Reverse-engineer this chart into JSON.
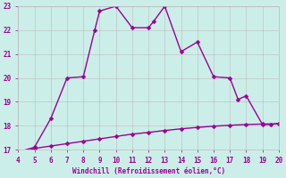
{
  "xlabel": "Windchill (Refroidissement éolien,°C)",
  "xlim": [
    4,
    20
  ],
  "ylim": [
    17,
    23
  ],
  "xticks": [
    4,
    5,
    6,
    7,
    8,
    9,
    10,
    11,
    12,
    13,
    14,
    15,
    16,
    17,
    18,
    19,
    20
  ],
  "yticks": [
    17,
    18,
    19,
    20,
    21,
    22,
    23
  ],
  "line_color": "#990099",
  "bg_color": "#cceee8",
  "grid_color": "#bbbbbb",
  "curve1_x": [
    4,
    5,
    6,
    7,
    8,
    8.7,
    9,
    10,
    11,
    12,
    12.3,
    13,
    14,
    15,
    16,
    17,
    17.5,
    18,
    19,
    19.5,
    20
  ],
  "curve1_y": [
    16.9,
    17.1,
    18.3,
    20.0,
    20.05,
    22.0,
    22.8,
    23.0,
    22.1,
    22.1,
    22.35,
    23.0,
    21.1,
    21.5,
    20.05,
    20.0,
    19.1,
    19.25,
    18.05,
    18.05,
    18.1
  ],
  "curve2_x": [
    4,
    5,
    6,
    7,
    8,
    9,
    10,
    11,
    12,
    13,
    14,
    15,
    16,
    17,
    18,
    19,
    20
  ],
  "curve2_y": [
    16.85,
    17.05,
    17.15,
    17.25,
    17.35,
    17.45,
    17.55,
    17.65,
    17.72,
    17.8,
    17.87,
    17.93,
    17.98,
    18.02,
    18.05,
    18.07,
    18.08
  ],
  "marker_size": 2.5,
  "line_width": 1.0
}
